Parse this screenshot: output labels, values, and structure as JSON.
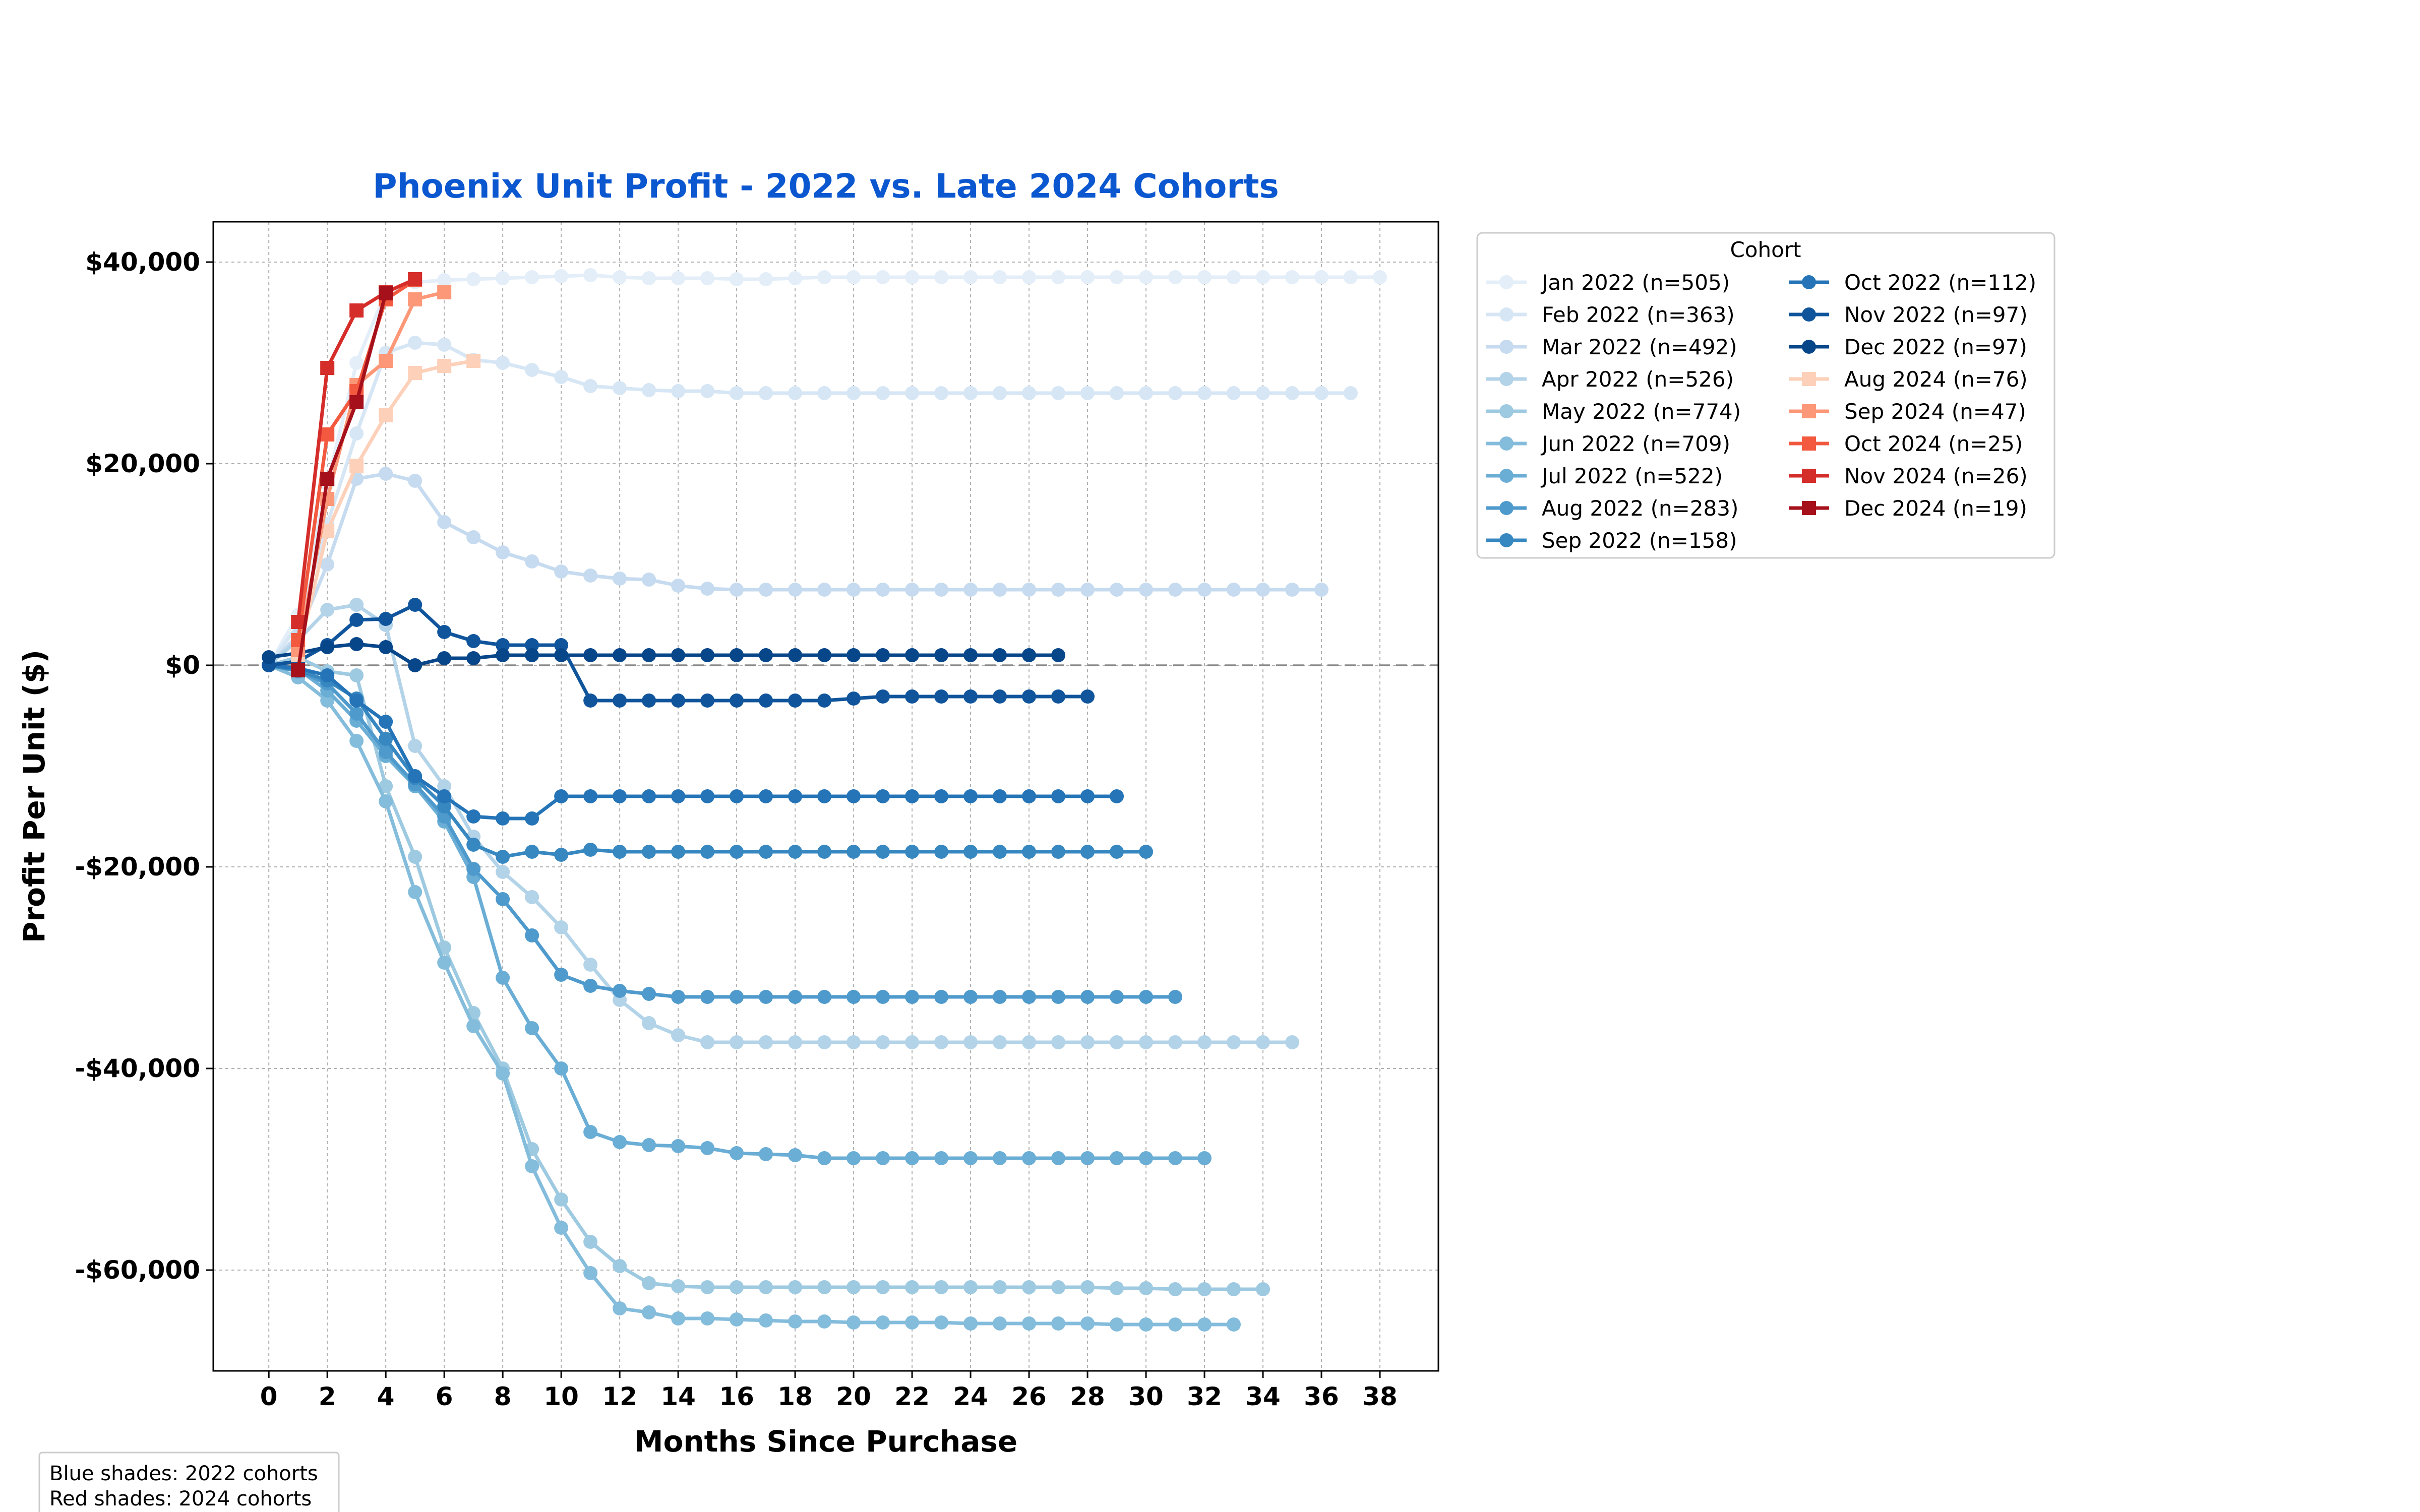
{
  "chart_data": {
    "type": "line",
    "title": "Phoenix Unit Profit - 2022 vs. Late 2024 Cohorts",
    "xlabel": "Months Since Purchase",
    "ylabel": "Profit Per Unit ($)",
    "xlim": [
      -1.9,
      40
    ],
    "ylim": [
      -70000,
      44000
    ],
    "x_ticks": [
      0,
      2,
      4,
      6,
      8,
      10,
      12,
      14,
      16,
      18,
      20,
      22,
      24,
      26,
      28,
      30,
      32,
      34,
      36,
      38
    ],
    "y_ticks": [
      40000,
      20000,
      0,
      -20000,
      -40000,
      -60000
    ],
    "y_tick_labels": [
      "$40,000",
      "$20,000",
      "$0",
      "-$20,000",
      "-$40,000",
      "-$60,000"
    ],
    "grid": true,
    "reference_line_y": 0,
    "legend": {
      "title": "Cohort",
      "position": "outside-top-right",
      "columns": 2
    },
    "annotation": [
      "Blue shades: 2022 cohorts",
      "Red shades: 2024 cohorts"
    ],
    "series": [
      {
        "name": "Jan 2022 (n=505)",
        "color": "#e3eef9",
        "marker": "circle",
        "start": 0,
        "values": [
          0,
          5000,
          18000,
          30000,
          37000,
          38000,
          38200,
          38300,
          38400,
          38500,
          38600,
          38700,
          38500,
          38400,
          38400,
          38400,
          38300,
          38300,
          38400,
          38500,
          38500,
          38500,
          38500,
          38500,
          38500,
          38500,
          38500,
          38500,
          38500,
          38500,
          38500,
          38500,
          38500,
          38500,
          38500,
          38500,
          38500,
          38500,
          38500
        ]
      },
      {
        "name": "Feb 2022 (n=363)",
        "color": "#d6e6f5",
        "marker": "circle",
        "start": 0,
        "values": [
          0,
          4000,
          14000,
          23000,
          31000,
          32000,
          31800,
          30300,
          30000,
          29300,
          28600,
          27700,
          27500,
          27300,
          27200,
          27200,
          27000,
          27000,
          27000,
          27000,
          27000,
          27000,
          27000,
          27000,
          27000,
          27000,
          27000,
          27000,
          27000,
          27000,
          27000,
          27000,
          27000,
          27000,
          27000,
          27000,
          27000,
          27000
        ]
      },
      {
        "name": "Mar 2022 (n=492)",
        "color": "#c6dbef",
        "marker": "circle",
        "start": 0,
        "values": [
          0,
          3000,
          10000,
          18500,
          19000,
          18300,
          14200,
          12700,
          11200,
          10300,
          9300,
          8900,
          8600,
          8500,
          7900,
          7600,
          7500,
          7500,
          7500,
          7500,
          7500,
          7500,
          7500,
          7500,
          7500,
          7500,
          7500,
          7500,
          7500,
          7500,
          7500,
          7500,
          7500,
          7500,
          7500,
          7500,
          7500
        ]
      },
      {
        "name": "Apr 2022 (n=526)",
        "color": "#b3d3e8",
        "marker": "circle",
        "start": 0,
        "values": [
          0,
          2500,
          5500,
          6000,
          4000,
          -8000,
          -12000,
          -17000,
          -20500,
          -23000,
          -26000,
          -29700,
          -33200,
          -35500,
          -36700,
          -37400,
          -37400,
          -37400,
          -37400,
          -37400,
          -37400,
          -37400,
          -37400,
          -37400,
          -37400,
          -37400,
          -37400,
          -37400,
          -37400,
          -37400,
          -37400,
          -37400,
          -37400,
          -37400,
          -37400,
          -37400
        ]
      },
      {
        "name": "May 2022 (n=774)",
        "color": "#9ecae1",
        "marker": "circle",
        "start": 0,
        "values": [
          0,
          800,
          -600,
          -1000,
          -12000,
          -19000,
          -28000,
          -34500,
          -40000,
          -48000,
          -53000,
          -57200,
          -59600,
          -61300,
          -61600,
          -61700,
          -61700,
          -61700,
          -61700,
          -61700,
          -61700,
          -61700,
          -61700,
          -61700,
          -61700,
          -61700,
          -61700,
          -61700,
          -61700,
          -61800,
          -61800,
          -61900,
          -61900,
          -61900,
          -61900
        ]
      },
      {
        "name": "Jun 2022 (n=709)",
        "color": "#84bcdb",
        "marker": "circle",
        "start": 0,
        "values": [
          0,
          -1200,
          -3500,
          -7500,
          -13500,
          -22500,
          -29500,
          -35800,
          -40500,
          -49700,
          -55800,
          -60300,
          -63800,
          -64200,
          -64800,
          -64800,
          -64900,
          -65000,
          -65100,
          -65100,
          -65200,
          -65200,
          -65200,
          -65200,
          -65300,
          -65300,
          -65300,
          -65300,
          -65300,
          -65400,
          -65400,
          -65400,
          -65400,
          -65400
        ]
      },
      {
        "name": "Jul 2022 (n=522)",
        "color": "#6aadd5",
        "marker": "circle",
        "start": 0,
        "values": [
          0,
          -400,
          -2500,
          -5500,
          -9000,
          -12000,
          -15500,
          -21000,
          -31000,
          -36000,
          -40000,
          -46300,
          -47300,
          -47600,
          -47700,
          -47900,
          -48400,
          -48500,
          -48600,
          -48900,
          -48900,
          -48900,
          -48900,
          -48900,
          -48900,
          -48900,
          -48900,
          -48900,
          -48900,
          -48900,
          -48900,
          -48900,
          -48900
        ]
      },
      {
        "name": "Aug 2022 (n=283)",
        "color": "#4f9acc",
        "marker": "circle",
        "start": 0,
        "values": [
          0,
          -600,
          -1800,
          -4800,
          -8600,
          -11800,
          -15000,
          -20200,
          -23200,
          -26800,
          -30700,
          -31800,
          -32300,
          -32600,
          -32900,
          -32900,
          -32900,
          -32900,
          -32900,
          -32900,
          -32900,
          -32900,
          -32900,
          -32900,
          -32900,
          -32900,
          -32900,
          -32900,
          -32900,
          -32900,
          -32900,
          -32900
        ]
      },
      {
        "name": "Sep 2022 (n=158)",
        "color": "#3787c0",
        "marker": "circle",
        "start": 0,
        "values": [
          0,
          -500,
          -1500,
          -3300,
          -7300,
          -11200,
          -14000,
          -17800,
          -19000,
          -18500,
          -18800,
          -18300,
          -18500,
          -18500,
          -18500,
          -18500,
          -18500,
          -18500,
          -18500,
          -18500,
          -18500,
          -18500,
          -18500,
          -18500,
          -18500,
          -18500,
          -18500,
          -18500,
          -18500,
          -18500,
          -18500
        ]
      },
      {
        "name": "Oct 2022 (n=112)",
        "color": "#2474b7",
        "marker": "circle",
        "start": 0,
        "values": [
          0,
          -300,
          -1000,
          -3500,
          -5600,
          -11000,
          -13000,
          -15000,
          -15200,
          -15200,
          -13000,
          -13000,
          -13000,
          -13000,
          -13000,
          -13000,
          -13000,
          -13000,
          -13000,
          -13000,
          -13000,
          -13000,
          -13000,
          -13000,
          -13000,
          -13000,
          -13000,
          -13000,
          -13000,
          -13000
        ]
      },
      {
        "name": "Nov 2022 (n=97)",
        "color": "#10559c",
        "marker": "circle",
        "start": 0,
        "values": [
          0,
          400,
          2000,
          4500,
          4600,
          6000,
          3300,
          2400,
          2000,
          2000,
          2000,
          -3500,
          -3500,
          -3500,
          -3500,
          -3500,
          -3500,
          -3500,
          -3500,
          -3500,
          -3300,
          -3100,
          -3100,
          -3100,
          -3100,
          -3100,
          -3100,
          -3100,
          -3100
        ]
      },
      {
        "name": "Dec 2022 (n=97)",
        "color": "#08468a",
        "marker": "circle",
        "start": 0,
        "values": [
          800,
          1200,
          1800,
          2100,
          1800,
          0,
          700,
          700,
          1000,
          1000,
          1000,
          1000,
          1000,
          1000,
          1000,
          1000,
          1000,
          1000,
          1000,
          1000,
          1000,
          1000,
          1000,
          1000,
          1000,
          1000,
          1000,
          1000
        ]
      },
      {
        "name": "Aug 2024 (n=76)",
        "color": "#fdd0b9",
        "marker": "square",
        "start": 1,
        "values": [
          1000,
          13300,
          19800,
          24800,
          29000,
          29700,
          30200
        ]
      },
      {
        "name": "Sep 2024 (n=47)",
        "color": "#fc9777",
        "marker": "square",
        "start": 1,
        "values": [
          1500,
          16500,
          27800,
          30200,
          36300,
          37000
        ]
      },
      {
        "name": "Oct 2024 (n=25)",
        "color": "#f2593f",
        "marker": "square",
        "start": 1,
        "values": [
          2500,
          22900,
          27200,
          36300,
          38200
        ]
      },
      {
        "name": "Nov 2024 (n=26)",
        "color": "#d52d2a",
        "marker": "square",
        "start": 1,
        "values": [
          4300,
          29500,
          35200,
          37000,
          38300
        ]
      },
      {
        "name": "Dec 2024 (n=19)",
        "color": "#a5101b",
        "marker": "square",
        "start": 1,
        "values": [
          -500,
          18500,
          26100,
          36900
        ]
      }
    ]
  }
}
